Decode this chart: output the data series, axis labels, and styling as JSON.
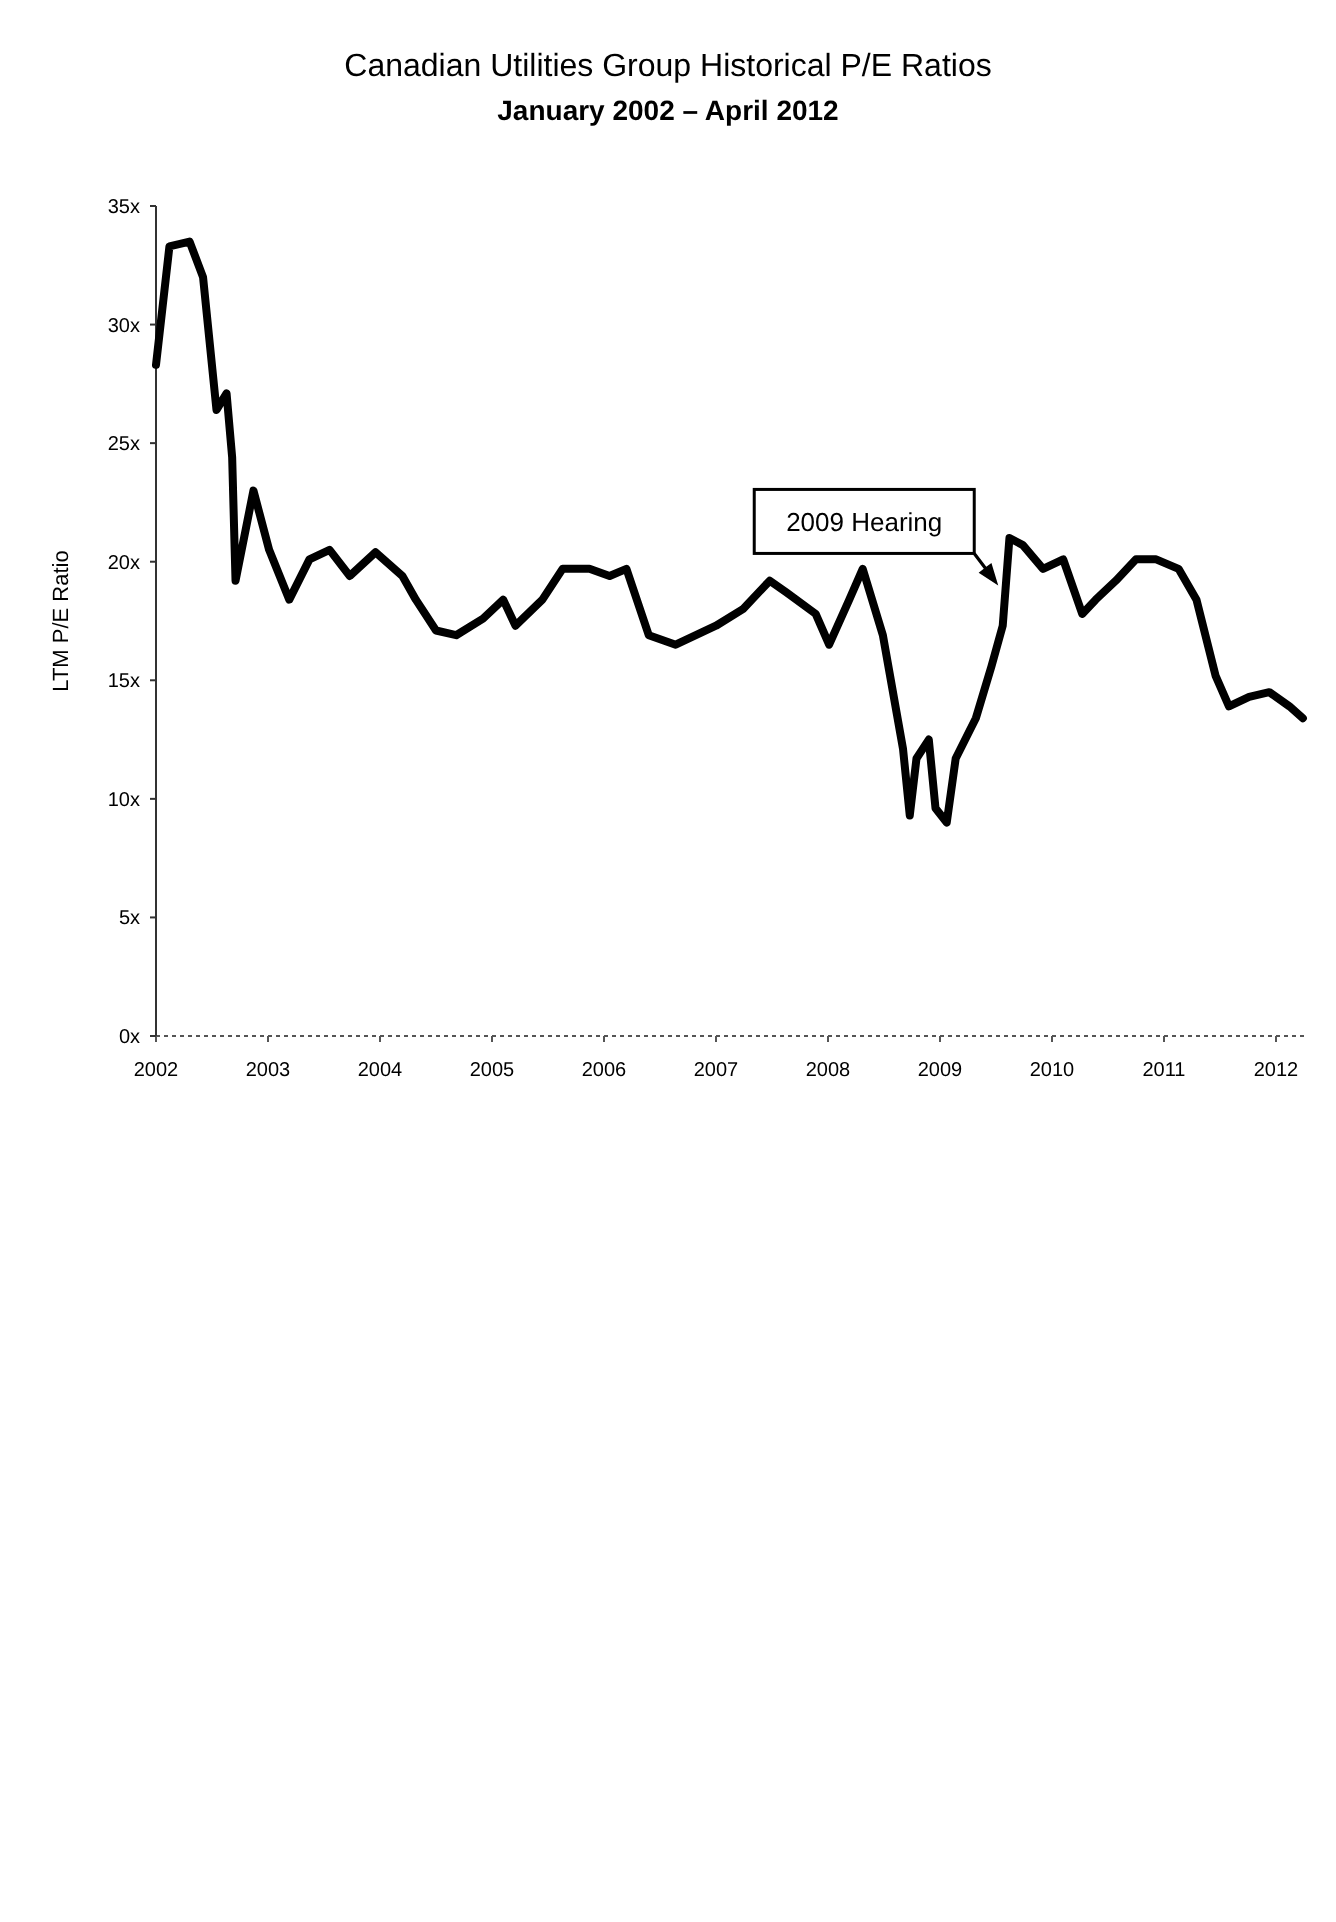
{
  "chart_data": {
    "type": "line",
    "title": "Canadian Utilities Group Historical P/E Ratios",
    "subtitle": "January 2002 – April 2012",
    "ylabel": "LTM P/E Ratio",
    "x": [
      2002.0,
      2002.12,
      2002.3,
      2002.42,
      2002.54,
      2002.63,
      2002.68,
      2002.71,
      2002.87,
      2003.01,
      2003.19,
      2003.37,
      2003.55,
      2003.73,
      2003.96,
      2004.2,
      2004.32,
      2004.5,
      2004.68,
      2004.92,
      2005.1,
      2005.21,
      2005.45,
      2005.63,
      2005.87,
      2006.05,
      2006.2,
      2006.4,
      2006.64,
      2006.82,
      2007.0,
      2007.24,
      2007.48,
      2007.63,
      2007.89,
      2008.01,
      2008.19,
      2008.31,
      2008.49,
      2008.67,
      2008.73,
      2008.79,
      2008.9,
      2008.96,
      2009.06,
      2009.14,
      2009.32,
      2009.46,
      2009.56,
      2009.62,
      2009.74,
      2009.92,
      2010.1,
      2010.27,
      2010.39,
      2010.57,
      2010.75,
      2010.93,
      2011.13,
      2011.29,
      2011.46,
      2011.58,
      2011.76,
      2011.94,
      2012.12,
      2012.24
    ],
    "series": [
      {
        "color": "#000000",
        "values": [
          28.3,
          33.3,
          33.5,
          32,
          26.4,
          27.1,
          24.4,
          19.2,
          23,
          20.5,
          18.4,
          20.1,
          20.5,
          19.4,
          20.4,
          19.4,
          18.4,
          17.1,
          16.9,
          17.6,
          18.4,
          17.3,
          18.4,
          19.7,
          19.7,
          19.4,
          19.7,
          16.9,
          16.5,
          16.9,
          17.3,
          18,
          19.2,
          18.7,
          17.8,
          16.5,
          18.4,
          19.7,
          16.9,
          12.1,
          9.3,
          11.7,
          12.5,
          9.6,
          9,
          11.7,
          13.4,
          15.6,
          17.3,
          21,
          20.7,
          19.7,
          20.1,
          17.8,
          18.4,
          19.2,
          20.1,
          20.1,
          19.7,
          18.4,
          15.2,
          13.9,
          14.3,
          14.5,
          13.9,
          13.4
        ]
      }
    ],
    "xlim": [
      2002,
      2012.25
    ],
    "xticks": [
      2002,
      2003,
      2004,
      2005,
      2006,
      2007,
      2008,
      2009,
      2010,
      2011,
      2012
    ],
    "ylim": [
      0,
      35
    ],
    "yticks": [
      {
        "value": 0,
        "label": "0x"
      },
      {
        "value": 5,
        "label": "5x"
      },
      {
        "value": 10,
        "label": "10x"
      },
      {
        "value": 15,
        "label": "15x"
      },
      {
        "value": 20,
        "label": "20x"
      },
      {
        "value": 25,
        "label": "25x"
      },
      {
        "value": 30,
        "label": "30x"
      },
      {
        "value": 35,
        "label": "35x"
      }
    ],
    "annotations": [
      {
        "text": "2009 Hearing",
        "x": 2009.52,
        "y": 19
      }
    ],
    "grid": false
  }
}
